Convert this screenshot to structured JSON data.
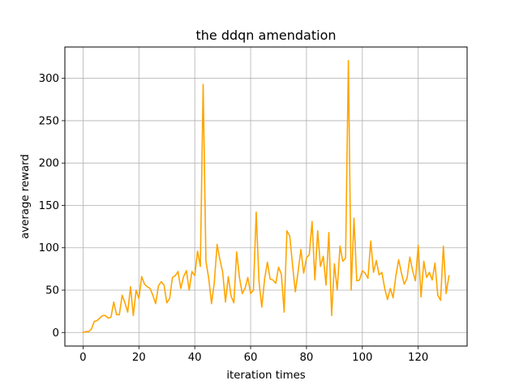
{
  "chart_data": {
    "type": "line",
    "title": "the ddqn amendation",
    "xlabel": "iteration times",
    "ylabel": "average reward",
    "xlim": [
      -6.5,
      137.5
    ],
    "ylim": [
      -16,
      337
    ],
    "xticks": [
      0,
      20,
      40,
      60,
      80,
      100,
      120
    ],
    "yticks": [
      0,
      50,
      100,
      150,
      200,
      250,
      300
    ],
    "grid": true,
    "legend": "none",
    "series": [
      {
        "color": "#ffa500",
        "x": [
          0,
          1,
          2,
          3,
          4,
          5,
          6,
          7,
          8,
          9,
          10,
          11,
          12,
          13,
          14,
          15,
          16,
          17,
          18,
          19,
          20,
          21,
          22,
          23,
          24,
          25,
          26,
          27,
          28,
          29,
          30,
          31,
          32,
          33,
          34,
          35,
          36,
          37,
          38,
          39,
          40,
          41,
          42,
          43,
          44,
          45,
          46,
          47,
          48,
          49,
          50,
          51,
          52,
          53,
          54,
          55,
          56,
          57,
          58,
          59,
          60,
          61,
          62,
          63,
          64,
          65,
          66,
          67,
          68,
          69,
          70,
          71,
          72,
          73,
          74,
          75,
          76,
          77,
          78,
          79,
          80,
          81,
          82,
          83,
          84,
          85,
          86,
          87,
          88,
          89,
          90,
          91,
          92,
          93,
          94,
          95,
          96,
          97,
          98,
          99,
          100,
          101,
          102,
          103,
          104,
          105,
          106,
          107,
          108,
          109,
          110,
          111,
          112,
          113,
          114,
          115,
          116,
          117,
          118,
          119,
          120,
          121,
          122,
          123,
          124,
          125,
          126,
          127,
          128,
          129,
          130,
          131
        ],
        "y": [
          0,
          1,
          1,
          4,
          13,
          14,
          17,
          20,
          20,
          17,
          18,
          36,
          21,
          21,
          44,
          35,
          24,
          54,
          20,
          50,
          40,
          66,
          57,
          54,
          52,
          44,
          34,
          55,
          60,
          56,
          35,
          40,
          65,
          67,
          72,
          52,
          66,
          73,
          50,
          72,
          67,
          96,
          78,
          293,
          84,
          64,
          34,
          59,
          104,
          86,
          71,
          36,
          66,
          43,
          35,
          95,
          65,
          46,
          52,
          65,
          46,
          50,
          142,
          60,
          30,
          63,
          83,
          63,
          62,
          58,
          77,
          69,
          24,
          120,
          114,
          80,
          48,
          72,
          98,
          70,
          88,
          92,
          131,
          62,
          120,
          78,
          90,
          56,
          118,
          20,
          81,
          50,
          102,
          84,
          88,
          321,
          50,
          135,
          61,
          62,
          73,
          70,
          64,
          108,
          71,
          85,
          68,
          71,
          52,
          39,
          52,
          41,
          67,
          86,
          70,
          57,
          64,
          89,
          73,
          61,
          103,
          42,
          84,
          65,
          71,
          62,
          82,
          44,
          38,
          102,
          46,
          67
        ]
      }
    ]
  }
}
